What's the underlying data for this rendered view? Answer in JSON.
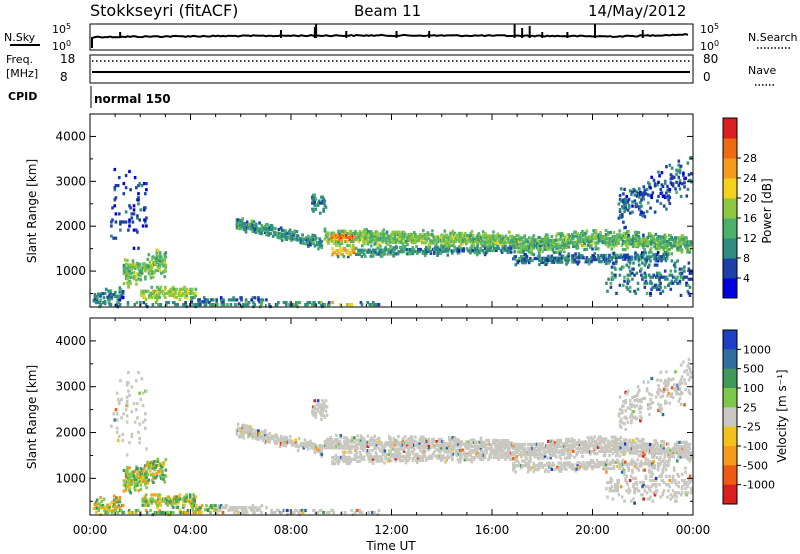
{
  "header": {
    "title": "Stokkseyri (fitACF)",
    "beam": "Beam 11",
    "date": "14/May/2012"
  },
  "params": {
    "nsky_label": "N.Sky",
    "nsky_ticks": [
      "10^5",
      "10^0"
    ],
    "nsearch_label": "N.Search",
    "nsearch_ticks": [
      "10^5",
      "10^0"
    ],
    "freq_label_line1": "Freq.",
    "freq_label_line2": "[MHz]",
    "freq_ticks": [
      "18",
      "8"
    ],
    "nave_label": "Nave",
    "nave_ticks": [
      "80",
      "0"
    ],
    "cpid_label": "CPID",
    "cpid_value": "normal 150"
  },
  "chart_data": [
    {
      "type": "heatmap",
      "panel": "power",
      "ylabel": "Slant Range [km]",
      "ylim": [
        200,
        4500
      ],
      "yticks": [
        1000,
        2000,
        3000,
        4000
      ],
      "xlim": [
        0,
        24
      ],
      "xticks": [
        "00:00",
        "04:00",
        "08:00",
        "12:00",
        "16:00",
        "20:00",
        "00:00"
      ],
      "colorbar": {
        "label": "Power [dB]",
        "ticks": [
          "4",
          "8",
          "12",
          "16",
          "20",
          "24",
          "28"
        ],
        "colors": [
          "#0000dd",
          "#1c3fa8",
          "#2f8a7f",
          "#4caf6a",
          "#8dc63f",
          "#f2d21b",
          "#f59a1a",
          "#ee6a12",
          "#d91f1f"
        ]
      }
    },
    {
      "type": "heatmap",
      "panel": "velocity",
      "ylabel": "Slant Range [km]",
      "ylim": [
        200,
        4500
      ],
      "yticks": [
        1000,
        2000,
        3000,
        4000
      ],
      "xlim": [
        0,
        24
      ],
      "xticks": [
        "00:00",
        "04:00",
        "08:00",
        "12:00",
        "16:00",
        "20:00",
        "00:00"
      ],
      "xlabel": "Time UT",
      "colorbar": {
        "label": "Velocity [m s⁻¹]",
        "ticks": [
          "1000",
          "500",
          "100",
          "25",
          "-25",
          "-100",
          "-500",
          "-1000"
        ],
        "colors": [
          "#1c3fc4",
          "#2f6fa0",
          "#3f9a5a",
          "#7cc84a",
          "#c8c8c0",
          "#f2c21b",
          "#f59a1a",
          "#ee5a12",
          "#d91f1f"
        ]
      }
    }
  ]
}
